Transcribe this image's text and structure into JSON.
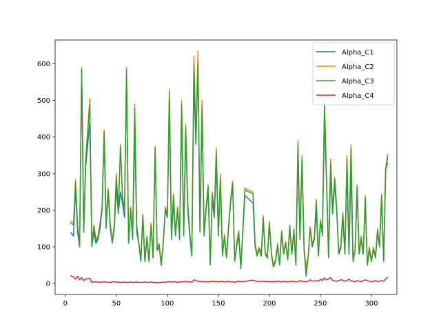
{
  "chart_data": {
    "type": "line",
    "title": "",
    "xlabel": "",
    "ylabel": "",
    "xlim": [
      -10,
      325
    ],
    "ylim": [
      -30,
      665
    ],
    "xticks": [
      0,
      50,
      100,
      150,
      200,
      250,
      300
    ],
    "yticks": [
      0,
      100,
      200,
      300,
      400,
      500,
      600
    ],
    "legend_position": "top-right",
    "grid": false,
    "colors": {
      "Alpha_C1": "#1f77b4",
      "Alpha_C2": "#ff7f0e",
      "Alpha_C3": "#2ca02c",
      "Alpha_C4": "#d62728"
    },
    "x": [
      5,
      8,
      10,
      12,
      14,
      16,
      18,
      20,
      24,
      26,
      28,
      30,
      32,
      34,
      36,
      38,
      40,
      42,
      44,
      46,
      48,
      50,
      52,
      54,
      56,
      58,
      60,
      62,
      64,
      66,
      68,
      70,
      72,
      74,
      76,
      78,
      80,
      82,
      84,
      86,
      88,
      90,
      92,
      94,
      96,
      98,
      100,
      102,
      104,
      106,
      108,
      110,
      112,
      114,
      116,
      118,
      120,
      122,
      124,
      126,
      128,
      130,
      132,
      134,
      136,
      138,
      140,
      142,
      144,
      146,
      148,
      150,
      152,
      154,
      156,
      158,
      160,
      162,
      164,
      166,
      168,
      170,
      172,
      176,
      184,
      186,
      188,
      190,
      192,
      194,
      196,
      198,
      200,
      202,
      204,
      206,
      208,
      210,
      212,
      214,
      216,
      218,
      220,
      222,
      224,
      226,
      228,
      230,
      232,
      234,
      236,
      238,
      240,
      242,
      244,
      246,
      248,
      250,
      252,
      254,
      256,
      258,
      260,
      262,
      264,
      266,
      268,
      270,
      272,
      274,
      276,
      278,
      280,
      282,
      284,
      286,
      288,
      290,
      292,
      294,
      296,
      298,
      300,
      302,
      304,
      306,
      308,
      310,
      312,
      314,
      316
    ],
    "series": [
      {
        "name": "Alpha_C1",
        "values": [
          140,
          130,
          260,
          140,
          100,
          580,
          140,
          320,
          440,
          100,
          140,
          110,
          120,
          150,
          200,
          400,
          150,
          250,
          150,
          110,
          150,
          260,
          190,
          250,
          220,
          180,
          570,
          110,
          200,
          120,
          420,
          140,
          110,
          60,
          180,
          60,
          120,
          60,
          160,
          70,
          360,
          90,
          100,
          50,
          110,
          200,
          180,
          500,
          120,
          220,
          130,
          200,
          120,
          460,
          130,
          410,
          200,
          130,
          75,
          550,
          380,
          600,
          140,
          470,
          130,
          200,
          250,
          50,
          230,
          180,
          330,
          130,
          280,
          75,
          130,
          70,
          150,
          220,
          270,
          60,
          100,
          130,
          40,
          240,
          220,
          100,
          75,
          95,
          75,
          170,
          80,
          70,
          160,
          80,
          45,
          60,
          100,
          50,
          135,
          80,
          110,
          65,
          150,
          80,
          140,
          50,
          360,
          120,
          330,
          90,
          40,
          70,
          150,
          100,
          120,
          200,
          75,
          170,
          130,
          450,
          280,
          70,
          300,
          190,
          270,
          200,
          80,
          95,
          180,
          80,
          310,
          80,
          310,
          60,
          90,
          250,
          80,
          120,
          80,
          220,
          50,
          90,
          60,
          95,
          70,
          140,
          100,
          230,
          60,
          310,
          330
        ]
      },
      {
        "name": "Alpha_C2",
        "values": [
          170,
          165,
          285,
          160,
          105,
          590,
          145,
          340,
          505,
          105,
          160,
          120,
          130,
          165,
          210,
          420,
          170,
          260,
          165,
          115,
          165,
          300,
          200,
          380,
          240,
          200,
          590,
          115,
          210,
          130,
          490,
          160,
          115,
          65,
          190,
          65,
          130,
          65,
          165,
          75,
          375,
          95,
          110,
          55,
          115,
          210,
          190,
          530,
          130,
          245,
          140,
          210,
          130,
          500,
          140,
          435,
          220,
          140,
          80,
          620,
          400,
          635,
          145,
          500,
          140,
          210,
          270,
          55,
          250,
          195,
          370,
          140,
          300,
          80,
          135,
          75,
          160,
          230,
          280,
          65,
          110,
          145,
          45,
          260,
          250,
          110,
          80,
          100,
          80,
          185,
          85,
          75,
          170,
          85,
          50,
          65,
          110,
          55,
          145,
          85,
          115,
          70,
          160,
          85,
          150,
          55,
          390,
          125,
          350,
          100,
          45,
          75,
          155,
          110,
          125,
          230,
          80,
          175,
          140,
          500,
          300,
          75,
          340,
          200,
          290,
          210,
          85,
          105,
          195,
          85,
          350,
          85,
          380,
          65,
          95,
          270,
          85,
          130,
          85,
          240,
          55,
          100,
          65,
          100,
          75,
          150,
          105,
          245,
          65,
          315,
          355
        ]
      },
      {
        "name": "Alpha_C3",
        "values": [
          165,
          160,
          275,
          155,
          100,
          585,
          140,
          335,
          490,
          100,
          155,
          115,
          125,
          160,
          205,
          415,
          165,
          255,
          160,
          110,
          160,
          290,
          195,
          375,
          235,
          195,
          585,
          110,
          205,
          125,
          480,
          155,
          110,
          60,
          185,
          60,
          125,
          60,
          160,
          70,
          370,
          90,
          105,
          50,
          110,
          205,
          185,
          520,
          125,
          240,
          135,
          205,
          125,
          490,
          135,
          425,
          215,
          135,
          75,
          600,
          390,
          600,
          140,
          485,
          135,
          205,
          265,
          50,
          245,
          190,
          360,
          135,
          290,
          75,
          130,
          70,
          155,
          225,
          275,
          60,
          105,
          140,
          40,
          255,
          245,
          105,
          75,
          95,
          75,
          180,
          80,
          70,
          165,
          80,
          45,
          60,
          105,
          50,
          140,
          80,
          110,
          65,
          155,
          80,
          145,
          50,
          380,
          120,
          340,
          95,
          20,
          70,
          150,
          105,
          120,
          225,
          75,
          170,
          135,
          490,
          290,
          70,
          330,
          195,
          285,
          205,
          80,
          100,
          190,
          80,
          340,
          80,
          370,
          60,
          90,
          265,
          80,
          125,
          80,
          235,
          50,
          95,
          60,
          95,
          70,
          145,
          100,
          240,
          60,
          310,
          345
        ]
      },
      {
        "name": "Alpha_C4",
        "values": [
          22,
          18,
          12,
          20,
          10,
          16,
          8,
          12,
          14,
          3,
          5,
          4,
          4,
          3,
          4,
          4,
          4,
          3,
          3,
          4,
          5,
          3,
          4,
          3,
          3,
          4,
          3,
          3,
          4,
          3,
          3,
          4,
          3,
          3,
          3,
          4,
          3,
          3,
          4,
          3,
          2,
          3,
          2,
          3,
          4,
          3,
          4,
          5,
          4,
          4,
          5,
          3,
          4,
          5,
          4,
          6,
          4,
          5,
          3,
          10,
          8,
          6,
          5,
          6,
          4,
          5,
          4,
          5,
          6,
          5,
          6,
          4,
          5,
          6,
          4,
          5,
          6,
          4,
          5,
          3,
          5,
          6,
          5,
          6,
          9,
          7,
          6,
          5,
          6,
          6,
          5,
          5,
          6,
          4,
          5,
          6,
          5,
          6,
          4,
          6,
          5,
          4,
          6,
          5,
          6,
          4,
          5,
          8,
          6,
          5,
          5,
          6,
          10,
          6,
          7,
          8,
          6,
          11,
          8,
          15,
          10,
          12,
          16,
          8,
          7,
          6,
          8,
          10,
          9,
          6,
          8,
          12,
          7,
          6,
          5,
          8,
          6,
          5,
          8,
          10,
          8,
          6,
          5,
          6,
          8,
          5,
          6,
          8,
          6,
          12,
          17
        ]
      }
    ]
  }
}
